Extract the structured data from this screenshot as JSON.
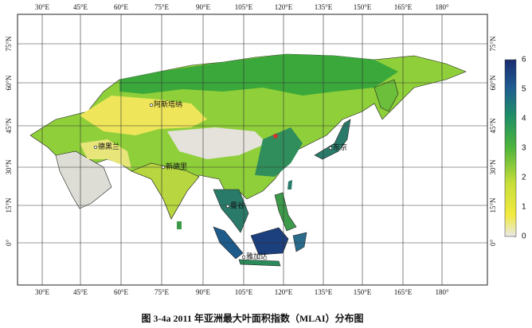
{
  "caption": "图 3-4a 2011 年亚洲最大叶面积指数（MLAI）分布图",
  "map": {
    "lon_ticks": [
      "30°E",
      "45°E",
      "60°E",
      "75°E",
      "90°E",
      "105°E",
      "120°E",
      "135°E",
      "150°E",
      "165°E",
      "180°"
    ],
    "lat_ticks": [
      "75°N",
      "60°N",
      "45°N",
      "30°N",
      "15°N",
      "0°"
    ],
    "cities": [
      "阿斯塔纳",
      "德黑兰",
      "新德里",
      "东京",
      "曼谷",
      "雅加达"
    ]
  },
  "colorbar": {
    "ticks": [
      0,
      1,
      2,
      3,
      4,
      5,
      6
    ]
  }
}
